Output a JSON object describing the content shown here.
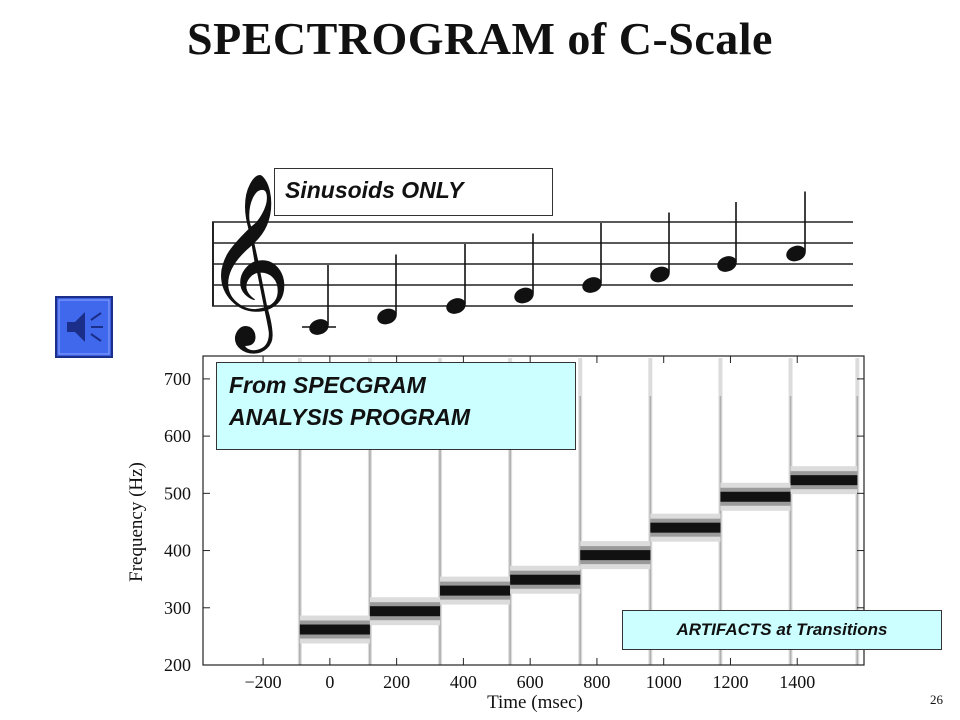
{
  "slide": {
    "title": "SPECTROGRAM of C-Scale",
    "callout_sinusoids": "Sinusoids ONLY",
    "callout_program_line1": "From SPECGRAM",
    "callout_program_line2": "ANALYSIS PROGRAM",
    "callout_artifacts": "ARTIFACTS at Transitions",
    "slide_number": "26",
    "audio_icon": "speaker-icon"
  },
  "chart_data": {
    "type": "heatmap",
    "xlabel": "Time (msec)",
    "ylabel": "Frequency  (Hz)",
    "xlim": [
      -380,
      1600
    ],
    "ylim": [
      200,
      740
    ],
    "xticks": [
      -200,
      0,
      200,
      400,
      600,
      800,
      1000,
      1200,
      1400
    ],
    "yticks": [
      200,
      300,
      400,
      500,
      600,
      700
    ],
    "tick_labels_x": [
      "−200",
      "0",
      "200",
      "400",
      "600",
      "800",
      "1000",
      "1200",
      "1400"
    ],
    "tick_labels_y": [
      "200",
      "300",
      "400",
      "500",
      "600",
      "700"
    ],
    "notes": [
      {
        "start": -90,
        "end": 120,
        "freq": 262
      },
      {
        "start": 120,
        "end": 330,
        "freq": 294
      },
      {
        "start": 330,
        "end": 540,
        "freq": 330
      },
      {
        "start": 540,
        "end": 750,
        "freq": 349
      },
      {
        "start": 750,
        "end": 960,
        "freq": 392
      },
      {
        "start": 960,
        "end": 1170,
        "freq": 440
      },
      {
        "start": 1170,
        "end": 1380,
        "freq": 494
      },
      {
        "start": 1380,
        "end": 1580,
        "freq": 523
      }
    ],
    "transitions": [
      -90,
      120,
      330,
      540,
      750,
      960,
      1170,
      1380,
      1580
    ],
    "grid": false,
    "colors": {
      "note": "#111111",
      "band": "#9a9a9a",
      "artifact": "#c0c0c0"
    }
  },
  "staff": {
    "clef": "𝄞",
    "notes": [
      "C",
      "D",
      "E",
      "F",
      "G",
      "A",
      "B",
      "C"
    ]
  }
}
